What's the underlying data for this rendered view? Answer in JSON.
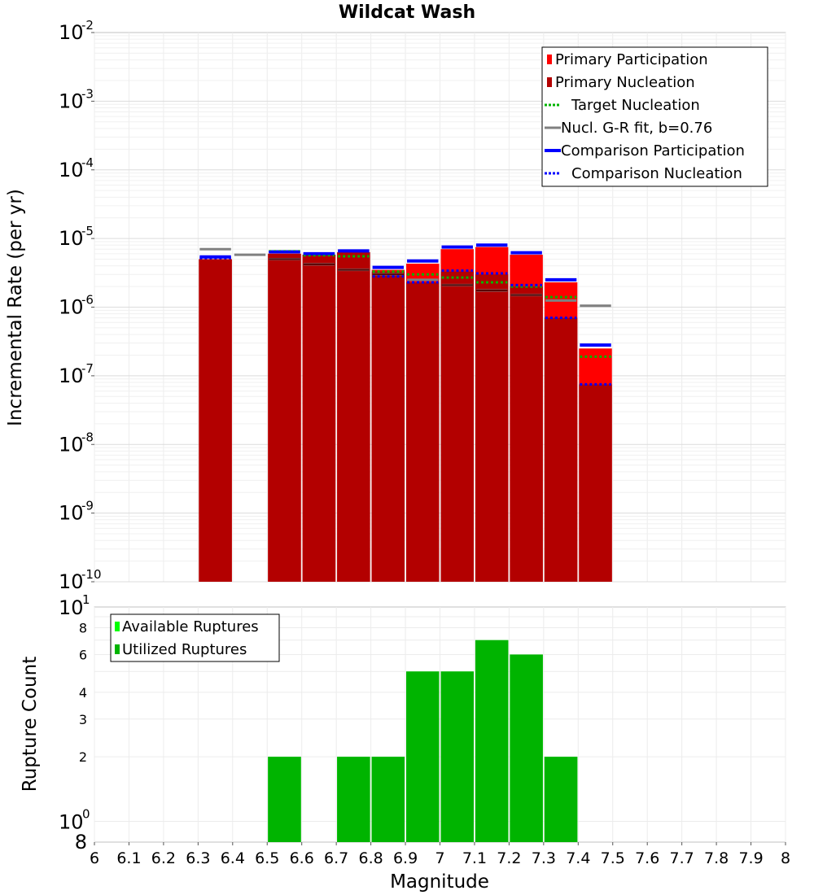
{
  "chart_data": [
    {
      "type": "bar",
      "title": "Wildcat Wash",
      "ylabel": "Incremental Rate (per yr)",
      "xlabel": "",
      "yscale": "log",
      "ylim": [
        1e-10,
        0.01
      ],
      "xlim": [
        6,
        8
      ],
      "grid": true,
      "legend_position": "top-right",
      "y_ticks": [
        "10^-10",
        "10^-9",
        "10^-8",
        "10^-7",
        "10^-6",
        "10^-5",
        "10^-4",
        "10^-3",
        "10^-2"
      ],
      "legend": [
        {
          "label": "Primary Participation",
          "color": "#ff0000",
          "style": "bar"
        },
        {
          "label": "Primary Nucleation",
          "color": "#b30000",
          "style": "bar"
        },
        {
          "label": "Target Nucleation",
          "color": "#00b400",
          "style": "dotted"
        },
        {
          "label": "Nucl. G-R fit, b=0.76",
          "color": "#808080",
          "style": "solid"
        },
        {
          "label": "Comparison Participation",
          "color": "#0000ff",
          "style": "solid-thick"
        },
        {
          "label": "Comparison Nucleation",
          "color": "#0000ff",
          "style": "dotted"
        }
      ],
      "bin_centers": [
        6.35,
        6.45,
        6.55,
        6.65,
        6.75,
        6.85,
        6.95,
        7.05,
        7.15,
        7.25,
        7.35,
        7.45
      ],
      "series": [
        {
          "name": "Primary Participation",
          "color": "#ff0000",
          "values": [
            5e-06,
            null,
            6e-06,
            5.8e-06,
            6.3e-06,
            3.5e-06,
            4.3e-06,
            7e-06,
            7.5e-06,
            5.8e-06,
            2.3e-06,
            2.5e-07
          ]
        },
        {
          "name": "Primary Nucleation",
          "color": "#b30000",
          "values": [
            5e-06,
            null,
            6e-06,
            5.8e-06,
            6.3e-06,
            3.3e-06,
            2.3e-06,
            3.3e-06,
            3e-06,
            2e-06,
            7e-07,
            7.5e-08
          ]
        },
        {
          "name": "Target Nucleation",
          "color": "#00b400",
          "values": [
            null,
            null,
            6.5e-06,
            5.7e-06,
            5.5e-06,
            3.3e-06,
            3e-06,
            2.7e-06,
            2.3e-06,
            2e-06,
            1.4e-06,
            1.9e-07
          ]
        },
        {
          "name": "Nucl. G-R fit, b=0.76",
          "color": "#808080",
          "values": [
            7e-06,
            5.8e-06,
            5e-06,
            4.2e-06,
            3.5e-06,
            3e-06,
            2.5e-06,
            2.1e-06,
            1.75e-06,
            1.5e-06,
            1.25e-06,
            1.05e-06
          ]
        },
        {
          "name": "Comparison Participation",
          "color": "#0000ff",
          "values": [
            5.4e-06,
            null,
            6.4e-06,
            6e-06,
            6.6e-06,
            3.8e-06,
            4.7e-06,
            7.5e-06,
            8e-06,
            6.2e-06,
            2.5e-06,
            2.8e-07
          ]
        },
        {
          "name": "Comparison Nucleation",
          "color": "#0000ff",
          "values": [
            5.2e-06,
            null,
            6.4e-06,
            6e-06,
            6.5e-06,
            2.8e-06,
            2.3e-06,
            3.4e-06,
            3.1e-06,
            2.1e-06,
            7e-07,
            7.5e-08
          ]
        }
      ]
    },
    {
      "type": "bar",
      "title": "",
      "ylabel": "Rupture Count",
      "xlabel": "Magnitude",
      "yscale": "log",
      "ylim": [
        0.8,
        10
      ],
      "xlim": [
        6,
        8
      ],
      "grid": true,
      "legend_position": "top-left",
      "y_ticks": [
        {
          "kind": "plain",
          "value": 8,
          "label": "8",
          "y_value": 0.8
        },
        {
          "kind": "pow",
          "base": "10",
          "exp": "0",
          "y_value": 1
        },
        {
          "kind": "plain",
          "value": 2,
          "label": "2",
          "y_value": 2
        },
        {
          "kind": "plain",
          "value": 3,
          "label": "3",
          "y_value": 3
        },
        {
          "kind": "plain",
          "value": 4,
          "label": "4",
          "y_value": 4
        },
        {
          "kind": "plain",
          "value": 6,
          "label": "6",
          "y_value": 6
        },
        {
          "kind": "plain",
          "value": 8,
          "label": "8",
          "y_value": 8
        },
        {
          "kind": "pow",
          "base": "10",
          "exp": "1",
          "y_value": 10
        }
      ],
      "x_tick_labels": [
        "6",
        "6.1",
        "6.2",
        "6.3",
        "6.4",
        "6.5",
        "6.6",
        "6.7",
        "6.8",
        "6.9",
        "7",
        "7.1",
        "7.2",
        "7.3",
        "7.4",
        "7.5",
        "7.6",
        "7.7",
        "7.8",
        "7.9",
        "8"
      ],
      "legend": [
        {
          "label": "Available Ruptures",
          "color": "#00ff00"
        },
        {
          "label": "Utilized Ruptures",
          "color": "#00b400"
        }
      ],
      "bin_centers": [
        6.55,
        6.75,
        6.85,
        6.95,
        7.05,
        7.15,
        7.25,
        7.35
      ],
      "series": [
        {
          "name": "Available Ruptures",
          "color": "#00ff00",
          "values": [
            2,
            2,
            2,
            5,
            5,
            7,
            6,
            2
          ]
        },
        {
          "name": "Utilized Ruptures",
          "color": "#00b400",
          "values": [
            2,
            2,
            2,
            5,
            5,
            7,
            6,
            2
          ]
        }
      ]
    }
  ]
}
